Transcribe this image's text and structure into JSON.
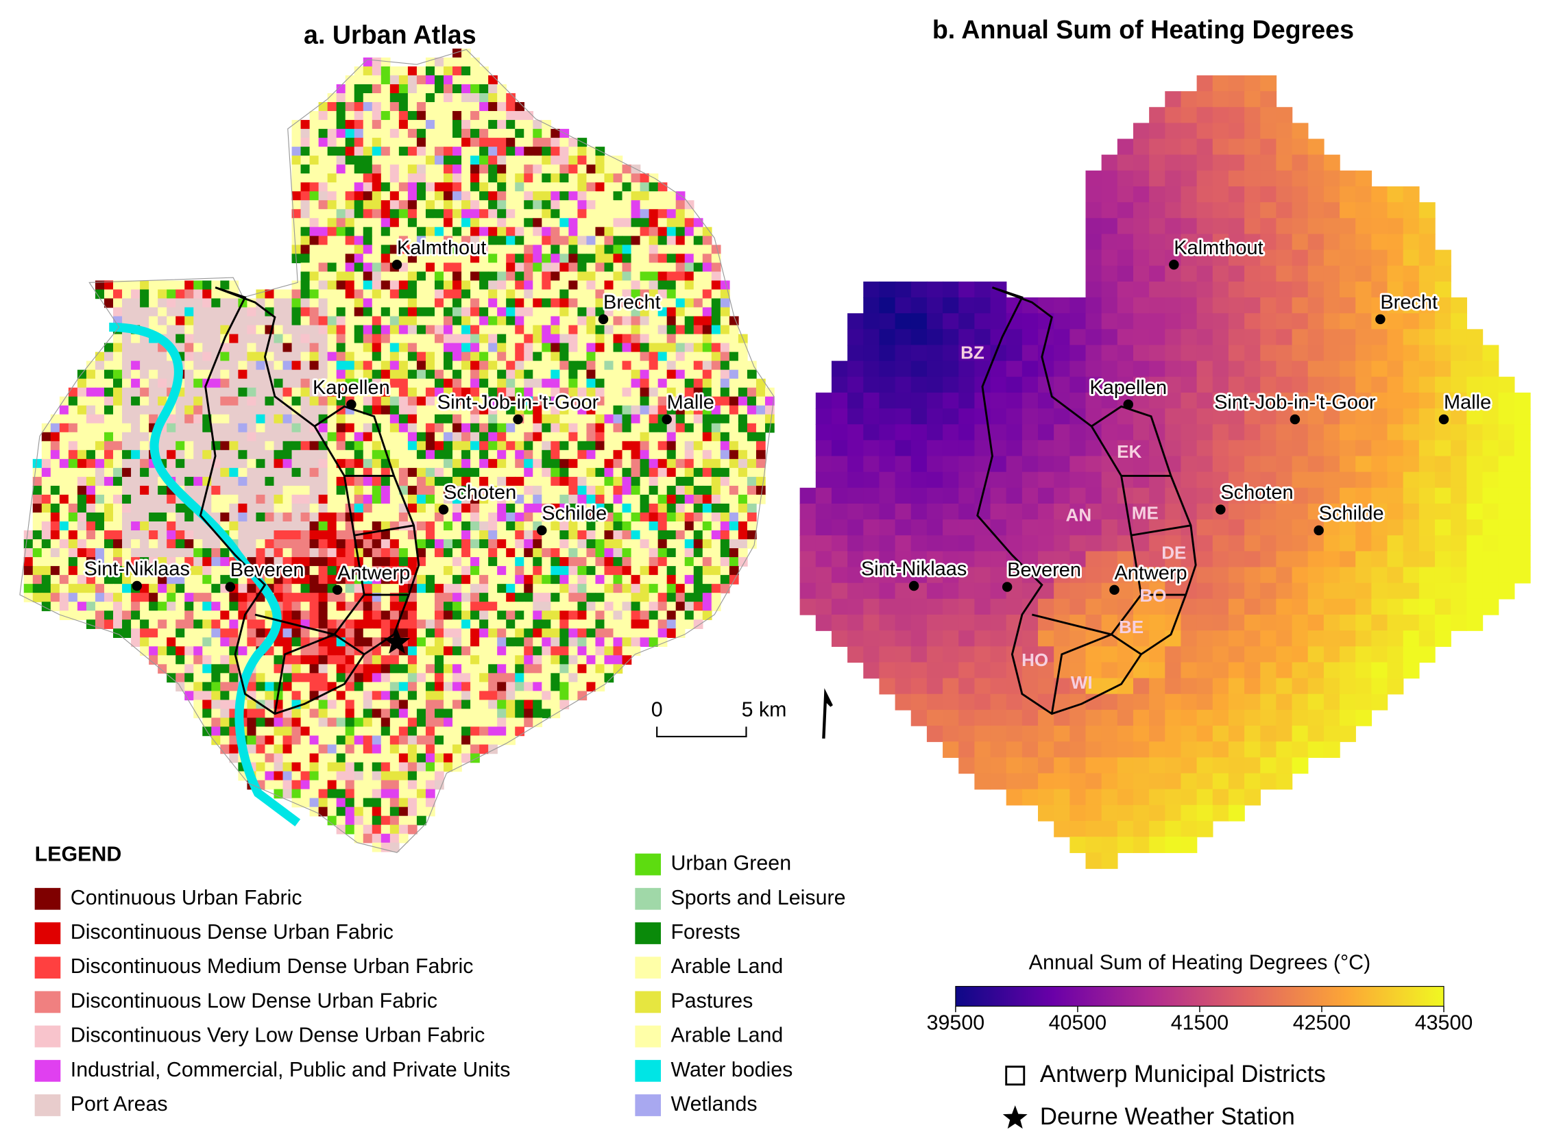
{
  "panel_a": {
    "title": "a. Urban Atlas",
    "scale_bar": [
      "0",
      "5 km"
    ]
  },
  "panel_b": {
    "title": "b. Annual Sum of Heating Degrees",
    "districts": [
      "BZ",
      "EK",
      "ME",
      "AN",
      "DE",
      "BO",
      "BE",
      "HO",
      "WI"
    ]
  },
  "places": [
    "Kalmthout",
    "Brecht",
    "Kapellen",
    "Sint-Job-in-'t-Goor",
    "Malle",
    "Schoten",
    "Schilde",
    "Sint-Niklaas",
    "Beveren",
    "Antwerp"
  ],
  "legend": {
    "title": "LEGEND",
    "items": [
      {
        "label": "Continuous Urban Fabric",
        "color": "#7f0000"
      },
      {
        "label": "Discontinuous Dense Urban Fabric",
        "color": "#e00000"
      },
      {
        "label": "Discontinuous Medium Dense Urban Fabric",
        "color": "#ff4040"
      },
      {
        "label": "Discontinuous Low Dense Urban Fabric",
        "color": "#f08080"
      },
      {
        "label": "Discontinuous Very Low Dense Urban Fabric",
        "color": "#f8c4cc"
      },
      {
        "label": "Industrial, Commercial, Public and Private Units",
        "color": "#e040f0"
      },
      {
        "label": "Port Areas",
        "color": "#e8cccc"
      },
      {
        "label": "Urban Green",
        "color": "#5ddc10"
      },
      {
        "label": "Sports and Leisure",
        "color": "#a0d8a8"
      },
      {
        "label": "Forests",
        "color": "#0a8a0a"
      },
      {
        "label": "Arable Land",
        "color": "#ffffa8"
      },
      {
        "label": "Pastures",
        "color": "#e6e640"
      },
      {
        "label": "Arable Land",
        "color": "#ffffa8"
      },
      {
        "label": "Water bodies",
        "color": "#00e5e5"
      },
      {
        "label": "Wetlands",
        "color": "#a8a8f0"
      }
    ]
  },
  "colorbar": {
    "title": "Annual Sum of Heating Degrees (°C)",
    "range": [
      39500,
      43500
    ],
    "ticks": [
      39500,
      40500,
      41500,
      42500,
      43500
    ],
    "colors": [
      "#0d0887",
      "#6a00a8",
      "#b12a90",
      "#e16462",
      "#fca636",
      "#f0f921"
    ]
  },
  "key": [
    "Antwerp Municipal Districts",
    "Deurne Weather Station"
  ]
}
